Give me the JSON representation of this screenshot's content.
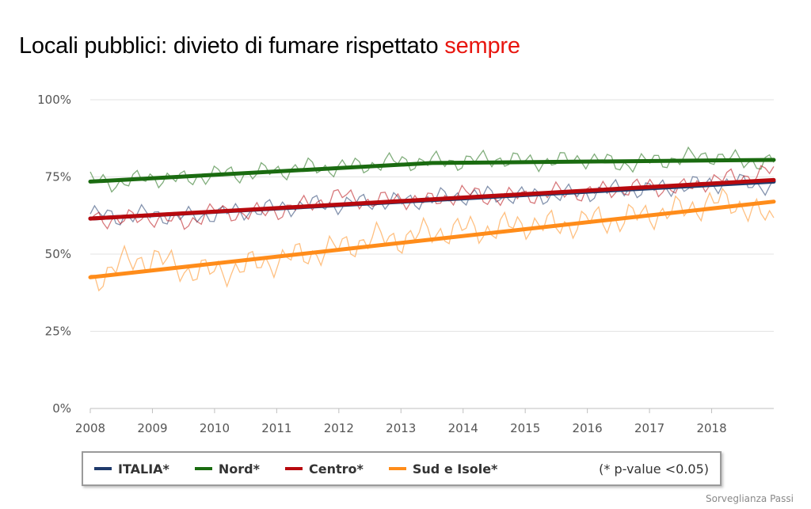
{
  "title": {
    "text": "Locali pubblici: divieto di fumare rispettato ",
    "highlight": "sempre",
    "highlight_color": "#e8150e"
  },
  "source": "Sorveglianza Passi",
  "colors": {
    "ITALIA": "#1f3a6b",
    "Nord": "#1a6b10",
    "Centro": "#b8090e",
    "Sud e Isole": "#ff8c1a"
  },
  "legend": {
    "items": [
      {
        "label": "ITALIA*",
        "series": "ITALIA"
      },
      {
        "label": "Nord*",
        "series": "Nord"
      },
      {
        "label": "Centro*",
        "series": "Centro"
      },
      {
        "label": "Sud e Isole*",
        "series": "Sud e Isole"
      }
    ],
    "note": "(* p-value <0.05)"
  },
  "chart_data": {
    "type": "line",
    "ylim": [
      0,
      100
    ],
    "xlim": [
      2008,
      2019
    ],
    "y_ticks": [
      "0%",
      "25%",
      "50%",
      "75%",
      "100%"
    ],
    "x_ticks": [
      "2008",
      "2009",
      "2010",
      "2011",
      "2012",
      "2013",
      "2014",
      "2015",
      "2016",
      "2017",
      "2018"
    ],
    "grid": true,
    "legend_position": "bottom",
    "trend_lines": [
      {
        "name": "ITALIA",
        "x": [
          2008,
          2019
        ],
        "values": [
          61.5,
          73.5
        ]
      },
      {
        "name": "Nord",
        "x": [
          2008,
          2013.5,
          2019
        ],
        "values": [
          73.5,
          79.5,
          80.5
        ]
      },
      {
        "name": "Centro",
        "x": [
          2008,
          2019
        ],
        "values": [
          61.5,
          74
        ]
      },
      {
        "name": "Sud e Isole",
        "x": [
          2008,
          2019
        ],
        "values": [
          42.5,
          67
        ]
      }
    ],
    "series": [
      {
        "name": "ITALIA",
        "x": [
          2008,
          2008.5,
          2009,
          2009.5,
          2010,
          2010.5,
          2011,
          2011.5,
          2012,
          2012.5,
          2013,
          2013.5,
          2014,
          2014.5,
          2015,
          2015.5,
          2016,
          2016.5,
          2017,
          2017.5,
          2018,
          2018.5,
          2019
        ],
        "values": [
          63,
          62,
          63,
          62,
          63,
          64,
          65,
          66,
          66,
          67,
          67,
          68,
          69,
          69,
          69,
          69,
          70,
          71,
          71,
          72,
          73,
          73,
          72
        ]
      },
      {
        "name": "Nord",
        "x": [
          2008,
          2008.5,
          2009,
          2009.5,
          2010,
          2010.5,
          2011,
          2011.5,
          2012,
          2012.5,
          2013,
          2013.5,
          2014,
          2014.5,
          2015,
          2015.5,
          2016,
          2016.5,
          2017,
          2017.5,
          2018,
          2018.5,
          2019
        ],
        "values": [
          74,
          73,
          75,
          74,
          76,
          76,
          77,
          78,
          78,
          79,
          80,
          80,
          80,
          81,
          80,
          80,
          81,
          79,
          80,
          81,
          82,
          80,
          80
        ]
      },
      {
        "name": "Centro",
        "x": [
          2008,
          2008.5,
          2009,
          2009.5,
          2010,
          2010.5,
          2011,
          2011.5,
          2012,
          2012.5,
          2013,
          2013.5,
          2014,
          2014.5,
          2015,
          2015.5,
          2016,
          2016.5,
          2017,
          2017.5,
          2018,
          2018.5,
          2019
        ],
        "values": [
          62,
          61,
          62,
          60,
          64,
          63,
          64,
          66,
          69,
          67,
          68,
          67,
          70,
          68,
          69,
          70,
          70,
          71,
          72,
          71,
          74,
          75,
          77
        ]
      },
      {
        "name": "Sud e Isole",
        "x": [
          2008,
          2008.5,
          2009,
          2009.5,
          2010,
          2010.5,
          2011,
          2011.5,
          2012,
          2012.5,
          2013,
          2013.5,
          2014,
          2014.5,
          2015,
          2015.5,
          2016,
          2016.5,
          2017,
          2017.5,
          2018,
          2018.5,
          2019
        ],
        "values": [
          41,
          47,
          49,
          45,
          44,
          46,
          48,
          50,
          52,
          55,
          55,
          57,
          58,
          58,
          60,
          59,
          61,
          61,
          63,
          64,
          67,
          66,
          60
        ]
      }
    ]
  }
}
